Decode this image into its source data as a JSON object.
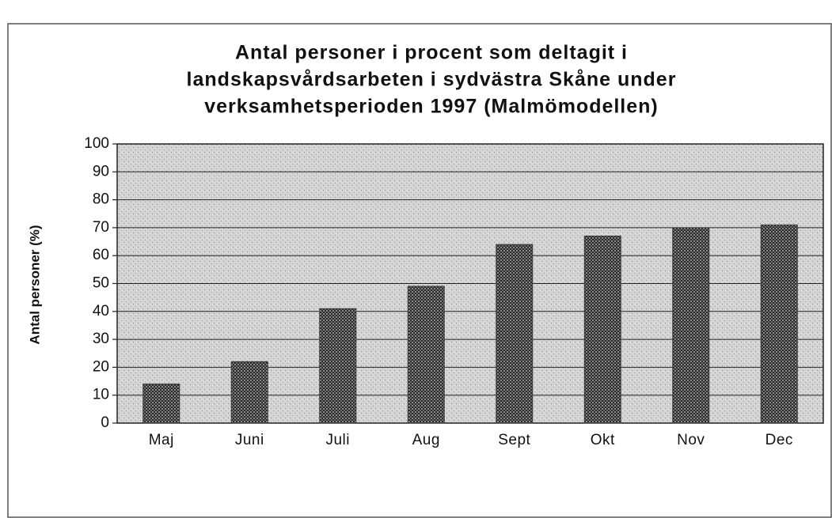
{
  "chart_data": {
    "type": "bar",
    "title": [
      "Antal personer i procent som deltagit i",
      "landskapsvårdsarbeten i sydvästra Skåne under",
      "verksamhetsperioden  1997  (Malmömodellen)"
    ],
    "y_label": "Antal personer (%)",
    "categories": [
      "Maj",
      "Juni",
      "Juli",
      "Aug",
      "Sept",
      "Okt",
      "Nov",
      "Dec"
    ],
    "values": [
      14,
      22,
      41,
      49,
      64,
      67,
      70,
      71
    ],
    "color": "#3a3a3a",
    "ylim": [
      0,
      100
    ],
    "yticks": [
      0,
      10,
      20,
      30,
      40,
      50,
      60,
      70,
      80,
      90,
      100
    ],
    "grid": true
  }
}
